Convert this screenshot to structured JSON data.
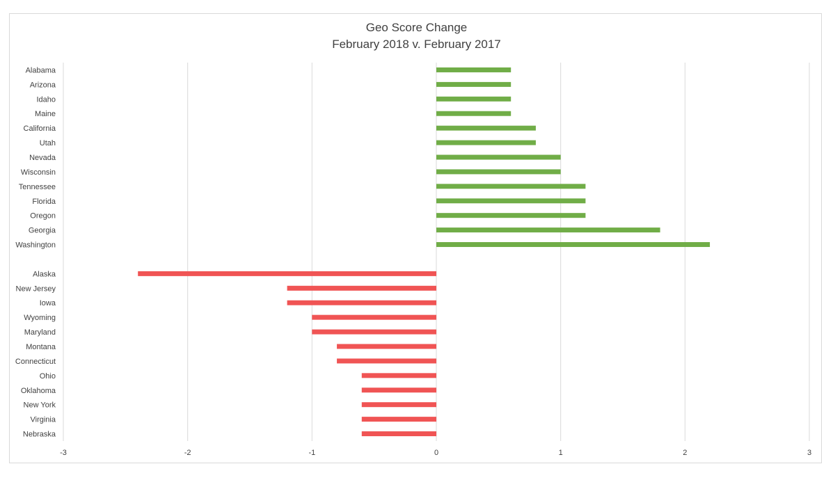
{
  "chart_data": {
    "type": "bar",
    "orientation": "horizontal",
    "title": "Geo Score Change",
    "subtitle": "February 2018 v. February 2017",
    "xlabel": "",
    "ylabel": "",
    "xlim": [
      -3,
      3
    ],
    "xticks": [
      -3,
      -2,
      -1,
      0,
      1,
      2,
      3
    ],
    "grid": true,
    "legend": "none",
    "colors": {
      "positive": "#70ad47",
      "negative": "#f05454",
      "gridline": "#d9d9d9"
    },
    "categories": [
      "Alabama",
      "Arizona",
      "Idaho",
      "Maine",
      "California",
      "Utah",
      "Nevada",
      "Wisconsin",
      "Tennessee",
      "Florida",
      "Oregon",
      "Georgia",
      "Washington",
      "",
      "Alaska",
      "New Jersey",
      "Iowa",
      "Wyoming",
      "Maryland",
      "Montana",
      "Connecticut",
      "Ohio",
      "Oklahoma",
      "New York",
      "Virginia",
      "Nebraska"
    ],
    "values": [
      0.6,
      0.6,
      0.6,
      0.6,
      0.8,
      0.8,
      1.0,
      1.0,
      1.2,
      1.2,
      1.2,
      1.8,
      2.2,
      null,
      -2.4,
      -1.2,
      -1.2,
      -1.0,
      -1.0,
      -0.8,
      -0.8,
      -0.6,
      -0.6,
      -0.6,
      -0.6,
      -0.6
    ]
  }
}
